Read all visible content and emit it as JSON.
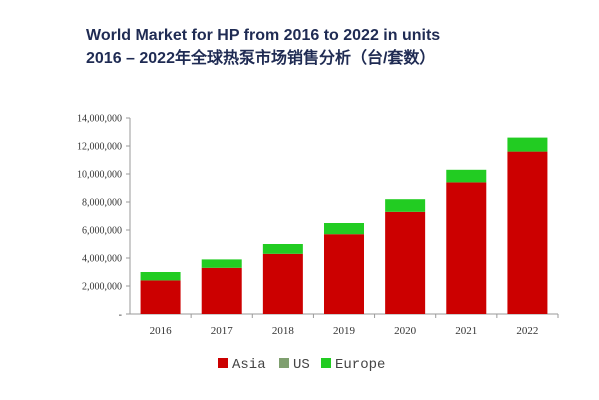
{
  "header": {
    "title_line1": "World Market for HP from 2016 to 2022 in units",
    "title_line2": "2016 – 2022年全球热泵市场销售分析（台/套数）"
  },
  "chart_data": {
    "type": "bar",
    "stacked": true,
    "title": "World Market for HP from 2016 to 2022 in units",
    "subtitle": "2016 – 2022年全球热泵市场销售分析（台/套数）",
    "categories": [
      "2016",
      "2017",
      "2018",
      "2019",
      "2020",
      "2021",
      "2022"
    ],
    "series": [
      {
        "name": "Asia",
        "color": "#cc0000",
        "values": [
          2400000,
          3300000,
          4300000,
          5700000,
          7300000,
          9400000,
          11600000
        ]
      },
      {
        "name": "US",
        "color": "#7f9f6f",
        "values": [
          0,
          0,
          0,
          0,
          0,
          0,
          0
        ]
      },
      {
        "name": "Europe",
        "color": "#22cc22",
        "values": [
          600000,
          600000,
          700000,
          800000,
          900000,
          900000,
          1000000
        ]
      }
    ],
    "ylim": [
      0,
      14000000
    ],
    "yticks": [
      0,
      2000000,
      4000000,
      6000000,
      8000000,
      10000000,
      12000000,
      14000000
    ],
    "ytick_labels": [
      "-",
      "2,000,000",
      "4,000,000",
      "6,000,000",
      "8,000,000",
      "10,000,000",
      "12,000,000",
      "14,000,000"
    ],
    "grid": false,
    "legend_position": "bottom"
  }
}
